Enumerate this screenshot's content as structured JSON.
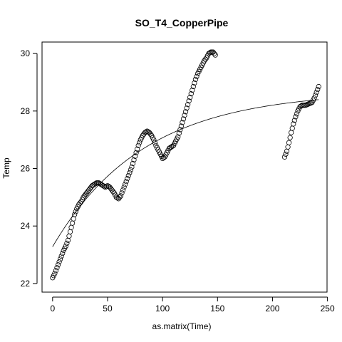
{
  "chart_data": {
    "type": "scatter",
    "title": "SO_T4_CopperPipe",
    "xlabel": "as.matrix(Time)",
    "ylabel": "Temp",
    "xlim": [
      -9.6,
      249.6
    ],
    "ylim": [
      21.7,
      30.4
    ],
    "x_ticks": [
      0,
      50,
      100,
      150,
      200,
      250
    ],
    "y_ticks": [
      22,
      24,
      26,
      28,
      30
    ],
    "x_tick_labels": [
      "0",
      "50",
      "100",
      "150",
      "200",
      "250"
    ],
    "y_tick_labels": [
      "22",
      "24",
      "26",
      "28",
      "30"
    ],
    "grid": false,
    "legend": "none",
    "marker": "open-circle",
    "series": [
      {
        "type": "scatter",
        "key_points": [
          [
            0,
            22.2
          ],
          [
            2,
            22.35
          ],
          [
            4,
            22.55
          ],
          [
            6,
            22.75
          ],
          [
            8,
            22.95
          ],
          [
            10,
            23.15
          ],
          [
            12,
            23.3
          ],
          [
            14,
            23.5
          ],
          [
            16,
            23.8
          ],
          [
            18,
            24.1
          ],
          [
            20,
            24.4
          ],
          [
            22,
            24.6
          ],
          [
            24,
            24.75
          ],
          [
            26,
            24.85
          ],
          [
            28,
            25.0
          ],
          [
            30,
            25.1
          ],
          [
            32,
            25.2
          ],
          [
            34,
            25.3
          ],
          [
            36,
            25.4
          ],
          [
            38,
            25.45
          ],
          [
            40,
            25.5
          ],
          [
            42,
            25.5
          ],
          [
            44,
            25.45
          ],
          [
            46,
            25.4
          ],
          [
            48,
            25.35
          ],
          [
            50,
            25.4
          ],
          [
            52,
            25.35
          ],
          [
            54,
            25.25
          ],
          [
            56,
            25.15
          ],
          [
            58,
            25.0
          ],
          [
            60,
            24.95
          ],
          [
            62,
            25.05
          ],
          [
            64,
            25.25
          ],
          [
            66,
            25.45
          ],
          [
            68,
            25.65
          ],
          [
            70,
            25.85
          ],
          [
            72,
            26.05
          ],
          [
            74,
            26.3
          ],
          [
            76,
            26.55
          ],
          [
            78,
            26.8
          ],
          [
            80,
            27.0
          ],
          [
            82,
            27.15
          ],
          [
            84,
            27.25
          ],
          [
            86,
            27.3
          ],
          [
            88,
            27.25
          ],
          [
            90,
            27.15
          ],
          [
            92,
            27.0
          ],
          [
            94,
            26.8
          ],
          [
            96,
            26.65
          ],
          [
            98,
            26.5
          ],
          [
            100,
            26.35
          ],
          [
            102,
            26.4
          ],
          [
            104,
            26.55
          ],
          [
            106,
            26.7
          ],
          [
            108,
            26.75
          ],
          [
            110,
            26.8
          ],
          [
            112,
            26.95
          ],
          [
            114,
            27.1
          ],
          [
            116,
            27.35
          ],
          [
            118,
            27.6
          ],
          [
            120,
            27.85
          ],
          [
            122,
            28.1
          ],
          [
            124,
            28.35
          ],
          [
            126,
            28.6
          ],
          [
            128,
            28.85
          ],
          [
            130,
            29.1
          ],
          [
            132,
            29.3
          ],
          [
            134,
            29.45
          ],
          [
            136,
            29.6
          ],
          [
            138,
            29.75
          ],
          [
            140,
            29.85
          ],
          [
            142,
            30.0
          ],
          [
            144,
            30.05
          ],
          [
            146,
            30.05
          ],
          [
            148,
            29.95
          ]
        ]
      },
      {
        "type": "scatter",
        "key_points": [
          [
            211,
            26.4
          ],
          [
            213,
            26.6
          ],
          [
            215,
            26.9
          ],
          [
            217,
            27.25
          ],
          [
            219,
            27.55
          ],
          [
            221,
            27.8
          ],
          [
            223,
            28.0
          ],
          [
            225,
            28.15
          ],
          [
            227,
            28.2
          ],
          [
            230,
            28.2
          ],
          [
            233,
            28.25
          ],
          [
            236,
            28.3
          ],
          [
            238,
            28.45
          ],
          [
            240,
            28.65
          ],
          [
            242,
            28.85
          ]
        ]
      },
      {
        "type": "line",
        "curve": "exponential-fit",
        "x_range": [
          0,
          242
        ],
        "key_points": [
          [
            0,
            23.28
          ],
          [
            50,
            25.73
          ],
          [
            100,
            27.07
          ],
          [
            150,
            27.8
          ],
          [
            200,
            28.2
          ],
          [
            242,
            28.43
          ]
        ]
      }
    ]
  }
}
